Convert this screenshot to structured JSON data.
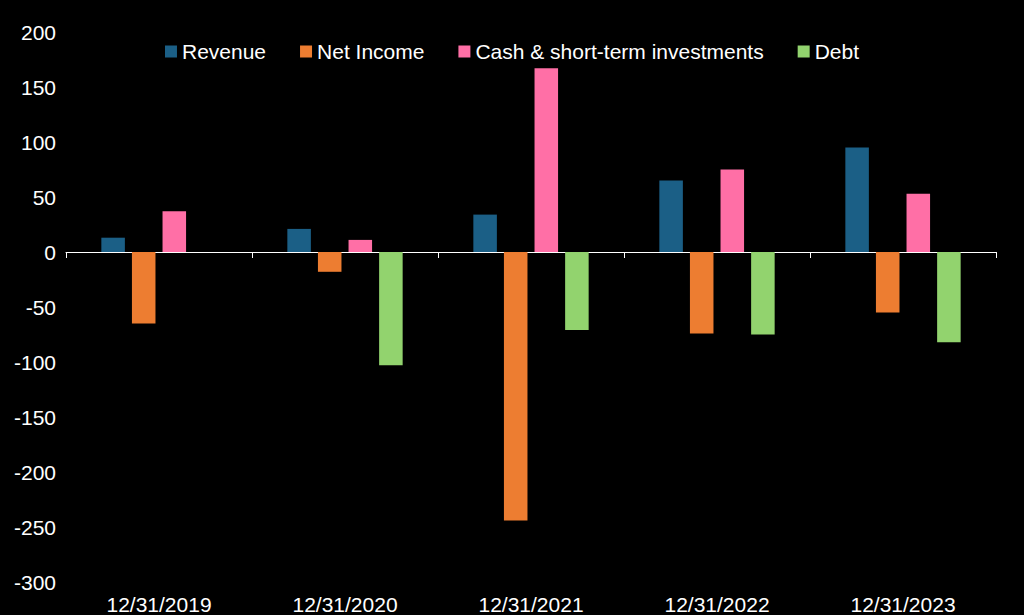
{
  "chart_data": {
    "type": "bar",
    "categories": [
      "12/31/2019",
      "12/31/2020",
      "12/31/2021",
      "12/31/2022",
      "12/31/2023"
    ],
    "series": [
      {
        "name": "Revenue",
        "color": "#1b5f86",
        "values": [
          13,
          21,
          34,
          65,
          95
        ]
      },
      {
        "name": "Net Income",
        "color": "#ed7d31",
        "values": [
          -65,
          -18,
          -244,
          -74,
          -55
        ]
      },
      {
        "name": "Cash & short-term investments",
        "color": "#ff6fa6",
        "values": [
          37,
          11,
          167,
          75,
          53
        ]
      },
      {
        "name": "Debt",
        "color": "#92d36e",
        "values": [
          null,
          -103,
          -71,
          -75,
          -82
        ]
      }
    ],
    "ylim": [
      -300,
      200
    ],
    "yticks": [
      -300,
      -250,
      -200,
      -150,
      -100,
      -50,
      0,
      50,
      100,
      150,
      200
    ],
    "grid": false,
    "legend": "top"
  }
}
